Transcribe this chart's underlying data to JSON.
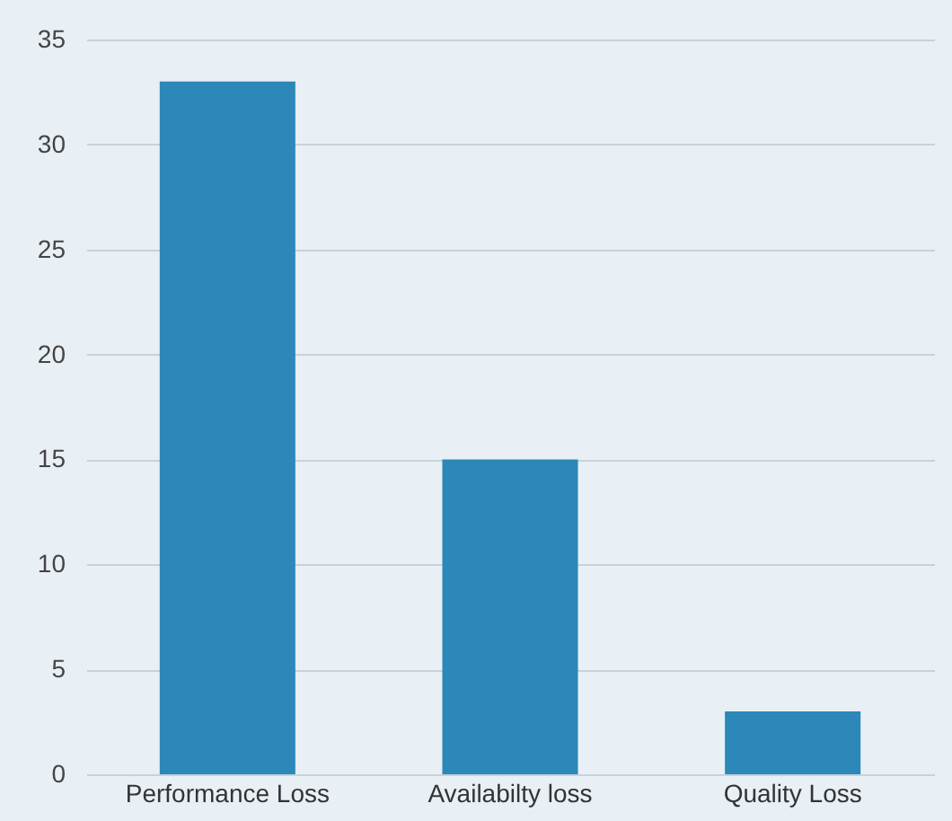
{
  "chart_data": {
    "type": "bar",
    "categories": [
      "Performance Loss",
      "Availabilty loss",
      "Quality Loss"
    ],
    "values": [
      33,
      15,
      3
    ],
    "color": "#2b88b8",
    "ylim": [
      0,
      35
    ],
    "yticks": [
      0,
      5,
      10,
      15,
      20,
      25,
      30,
      35
    ],
    "grid": "y"
  }
}
